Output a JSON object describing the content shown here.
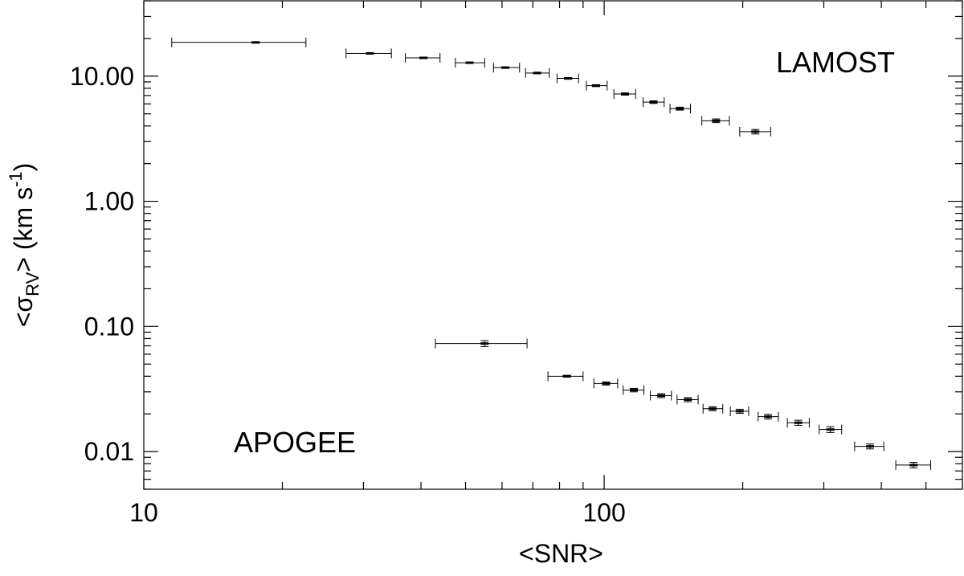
{
  "chart_data": {
    "type": "scatter",
    "xscale": "log",
    "yscale": "log",
    "xlim": [
      10,
      600
    ],
    "ylim": [
      0.005,
      40
    ],
    "xticks": [
      {
        "value": 10,
        "label": "10"
      },
      {
        "value": 100,
        "label": "100"
      }
    ],
    "yticks": [
      {
        "value": 0.01,
        "label": "0.01"
      },
      {
        "value": 0.1,
        "label": "0.10"
      },
      {
        "value": 1,
        "label": "1.00"
      },
      {
        "value": 10,
        "label": "10.00"
      }
    ],
    "xlabel": "<SNR>",
    "ylabel_parts": {
      "prefix": "<σ",
      "subscript": "RV",
      "middle": "> (km s",
      "superscript": "-1",
      "suffix": ")"
    },
    "grid": false,
    "series": [
      {
        "name": "LAMOST",
        "points": [
          {
            "x": 17.5,
            "y": 18.6,
            "xlo": 11.5,
            "xhi": 22.5,
            "ylo": 18.4,
            "yhi": 18.8
          },
          {
            "x": 31.0,
            "y": 15.2,
            "xlo": 27.5,
            "xhi": 34.5,
            "ylo": 15.05,
            "yhi": 15.35
          },
          {
            "x": 40.5,
            "y": 14.0,
            "xlo": 37.0,
            "xhi": 44.0,
            "ylo": 13.85,
            "yhi": 14.15
          },
          {
            "x": 51.0,
            "y": 12.8,
            "xlo": 47.5,
            "xhi": 55.0,
            "ylo": 12.65,
            "yhi": 12.95
          },
          {
            "x": 61.0,
            "y": 11.7,
            "xlo": 57.5,
            "xhi": 65.5,
            "ylo": 11.55,
            "yhi": 11.85
          },
          {
            "x": 71.5,
            "y": 10.6,
            "xlo": 67.5,
            "xhi": 76.0,
            "ylo": 10.45,
            "yhi": 10.75
          },
          {
            "x": 83.5,
            "y": 9.6,
            "xlo": 79.0,
            "xhi": 88.0,
            "ylo": 9.45,
            "yhi": 9.75
          },
          {
            "x": 96.0,
            "y": 8.4,
            "xlo": 91.5,
            "xhi": 101.5,
            "ylo": 8.25,
            "yhi": 8.55
          },
          {
            "x": 111.0,
            "y": 7.2,
            "xlo": 105.0,
            "xhi": 117.0,
            "ylo": 7.05,
            "yhi": 7.35
          },
          {
            "x": 128.0,
            "y": 6.2,
            "xlo": 121.5,
            "xhi": 135.0,
            "ylo": 6.05,
            "yhi": 6.35
          },
          {
            "x": 146.0,
            "y": 5.5,
            "xlo": 139.0,
            "xhi": 154.0,
            "ylo": 5.35,
            "yhi": 5.65
          },
          {
            "x": 175.0,
            "y": 4.4,
            "xlo": 163.0,
            "xhi": 187.0,
            "ylo": 4.25,
            "yhi": 4.55
          },
          {
            "x": 213.0,
            "y": 3.6,
            "xlo": 197.0,
            "xhi": 230.0,
            "ylo": 3.45,
            "yhi": 3.75
          }
        ]
      },
      {
        "name": "APOGEE",
        "points": [
          {
            "x": 55.0,
            "y": 0.073,
            "xlo": 43.0,
            "xhi": 68.0,
            "ylo": 0.069,
            "yhi": 0.077
          },
          {
            "x": 83.0,
            "y": 0.04,
            "xlo": 75.5,
            "xhi": 90.0,
            "ylo": 0.0393,
            "yhi": 0.0407
          },
          {
            "x": 101.0,
            "y": 0.035,
            "xlo": 95.0,
            "xhi": 107.0,
            "ylo": 0.034,
            "yhi": 0.036
          },
          {
            "x": 116.0,
            "y": 0.031,
            "xlo": 110.0,
            "xhi": 122.0,
            "ylo": 0.03,
            "yhi": 0.032
          },
          {
            "x": 133.0,
            "y": 0.028,
            "xlo": 126.0,
            "xhi": 140.0,
            "ylo": 0.027,
            "yhi": 0.029
          },
          {
            "x": 152.0,
            "y": 0.026,
            "xlo": 144.0,
            "xhi": 160.0,
            "ylo": 0.025,
            "yhi": 0.027
          },
          {
            "x": 172.0,
            "y": 0.022,
            "xlo": 164.0,
            "xhi": 181.0,
            "ylo": 0.0212,
            "yhi": 0.0228
          },
          {
            "x": 197.0,
            "y": 0.021,
            "xlo": 188.0,
            "xhi": 206.0,
            "ylo": 0.0202,
            "yhi": 0.0218
          },
          {
            "x": 227.0,
            "y": 0.019,
            "xlo": 216.0,
            "xhi": 239.0,
            "ylo": 0.0182,
            "yhi": 0.0198
          },
          {
            "x": 264.0,
            "y": 0.017,
            "xlo": 250.0,
            "xhi": 279.0,
            "ylo": 0.0162,
            "yhi": 0.0178
          },
          {
            "x": 310.0,
            "y": 0.015,
            "xlo": 293.0,
            "xhi": 328.0,
            "ylo": 0.0142,
            "yhi": 0.0158
          },
          {
            "x": 378.0,
            "y": 0.011,
            "xlo": 350.0,
            "xhi": 405.0,
            "ylo": 0.0105,
            "yhi": 0.0115
          },
          {
            "x": 470.0,
            "y": 0.0078,
            "xlo": 430.0,
            "xhi": 512.0,
            "ylo": 0.0074,
            "yhi": 0.0082
          }
        ]
      }
    ],
    "annotations": [
      {
        "text": "LAMOST",
        "placement": "upper-right"
      },
      {
        "text": "APOGEE",
        "placement": "lower-left"
      }
    ]
  }
}
